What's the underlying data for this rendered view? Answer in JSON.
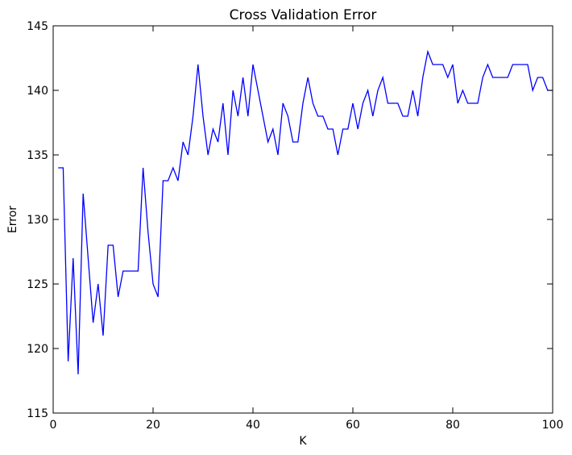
{
  "chart_data": {
    "type": "line",
    "title": "Cross Validation Error",
    "xlabel": "K",
    "ylabel": "Error",
    "xlim": [
      0,
      100
    ],
    "ylim": [
      115,
      145
    ],
    "xticks": [
      0,
      20,
      40,
      60,
      80,
      100
    ],
    "yticks": [
      115,
      120,
      125,
      130,
      135,
      140,
      145
    ],
    "grid": false,
    "series": [
      {
        "color": "#0000ff",
        "x": [
          1,
          2,
          3,
          4,
          5,
          6,
          7,
          8,
          9,
          10,
          11,
          12,
          13,
          14,
          15,
          16,
          17,
          18,
          19,
          20,
          21,
          22,
          23,
          24,
          25,
          26,
          27,
          28,
          29,
          30,
          31,
          32,
          33,
          34,
          35,
          36,
          37,
          38,
          39,
          40,
          41,
          42,
          43,
          44,
          45,
          46,
          47,
          48,
          49,
          50,
          51,
          52,
          53,
          54,
          55,
          56,
          57,
          58,
          59,
          60,
          61,
          62,
          63,
          64,
          65,
          66,
          67,
          68,
          69,
          70,
          71,
          72,
          73,
          74,
          75,
          76,
          77,
          78,
          79,
          80,
          81,
          82,
          83,
          84,
          85,
          86,
          87,
          88,
          89,
          90,
          91,
          92,
          93,
          94,
          95,
          96,
          97,
          98,
          99,
          100
        ],
        "y": [
          134,
          134,
          119,
          127,
          118,
          132,
          127,
          122,
          125,
          121,
          128,
          128,
          124,
          126,
          126,
          126,
          126,
          134,
          129,
          125,
          124,
          133,
          133,
          134,
          133,
          136,
          135,
          138,
          142,
          138,
          135,
          137,
          136,
          139,
          135,
          140,
          138,
          141,
          138,
          142,
          140,
          138,
          136,
          137,
          135,
          139,
          138,
          136,
          136,
          139,
          141,
          139,
          138,
          138,
          137,
          137,
          135,
          137,
          137,
          139,
          137,
          139,
          140,
          138,
          140,
          141,
          139,
          139,
          139,
          138,
          138,
          140,
          138,
          141,
          143,
          142,
          142,
          142,
          141,
          142,
          139,
          140,
          139,
          139,
          139,
          141,
          142,
          141,
          141,
          141,
          141,
          142,
          142,
          142,
          142,
          140,
          141,
          141,
          140,
          140
        ]
      }
    ]
  }
}
